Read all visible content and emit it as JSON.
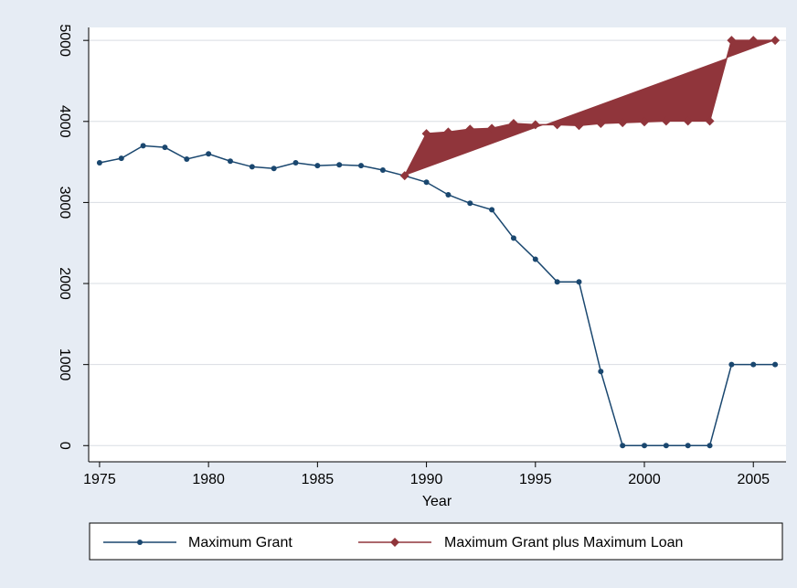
{
  "chart_data": {
    "type": "line",
    "x": [
      1975,
      1976,
      1977,
      1978,
      1979,
      1980,
      1981,
      1982,
      1983,
      1984,
      1985,
      1986,
      1987,
      1988,
      1989,
      1990,
      1991,
      1992,
      1993,
      1994,
      1995,
      1996,
      1997,
      1998,
      1999,
      2000,
      2001,
      2002,
      2003,
      2004,
      2005,
      2006
    ],
    "series": [
      {
        "name": "Maximum Grant",
        "color": "#1a476f",
        "marker": "circle",
        "values": [
          3490,
          3545,
          3700,
          3680,
          3535,
          3600,
          3510,
          3440,
          3420,
          3490,
          3455,
          3465,
          3455,
          3400,
          3330,
          3250,
          3095,
          2990,
          2910,
          2560,
          2300,
          2020,
          2020,
          915,
          0,
          0,
          0,
          0,
          0,
          1000,
          1000,
          1000
        ]
      },
      {
        "name": "Maximum Grant plus Maximum Loan",
        "color": "#90353b",
        "marker": "diamond",
        "fill": true,
        "values": [
          null,
          null,
          null,
          null,
          null,
          null,
          null,
          null,
          null,
          null,
          null,
          null,
          null,
          null,
          3330,
          3850,
          3870,
          3905,
          3915,
          3975,
          3960,
          3960,
          3950,
          3975,
          3985,
          3995,
          4005,
          4005,
          4005,
          5000,
          5000,
          5000
        ]
      }
    ],
    "xlabel": "Year",
    "xlim": [
      1974.5,
      2006.5
    ],
    "xticks": [
      1975,
      1980,
      1985,
      1990,
      1995,
      2000,
      2005
    ],
    "ylim": [
      -200,
      5160
    ],
    "yticks": [
      0,
      1000,
      2000,
      3000,
      4000,
      5000
    ],
    "grid": true,
    "legend": "bottom"
  }
}
